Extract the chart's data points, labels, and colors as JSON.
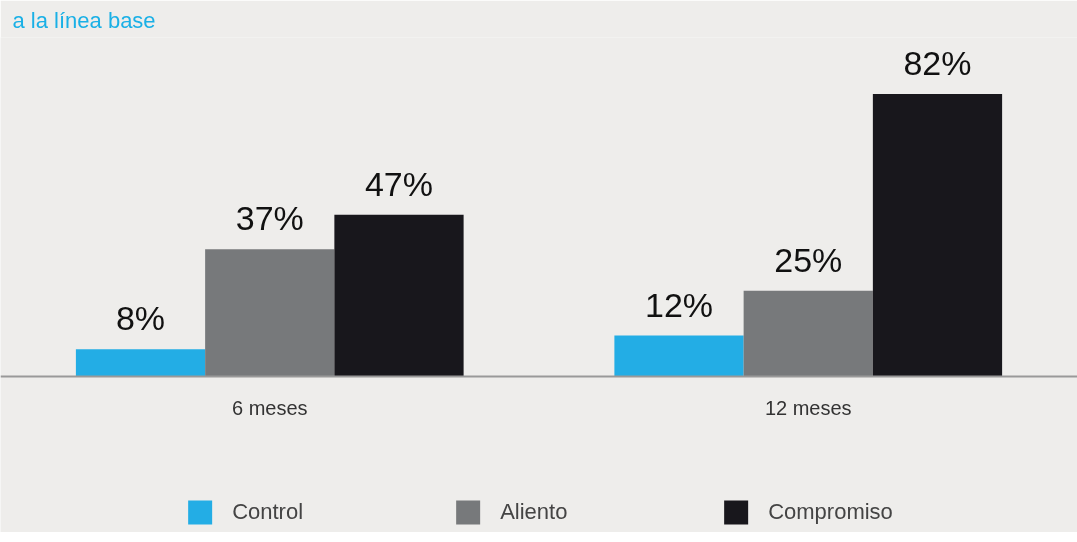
{
  "chart_data": {
    "type": "bar",
    "title": "a la línea base",
    "categories": [
      "6 meses",
      "12 meses"
    ],
    "series": [
      {
        "name": "Control",
        "color": "#23ade5",
        "values": [
          8,
          12
        ],
        "value_labels": [
          "8%",
          "12%"
        ]
      },
      {
        "name": "Aliento",
        "color": "#77797b",
        "values": [
          37,
          25
        ],
        "value_labels": [
          "37%",
          "25%"
        ]
      },
      {
        "name": "Compromiso",
        "color": "#18171c",
        "values": [
          47,
          82
        ],
        "value_labels": [
          "47%",
          "82%"
        ]
      }
    ],
    "legend": "bottom"
  }
}
